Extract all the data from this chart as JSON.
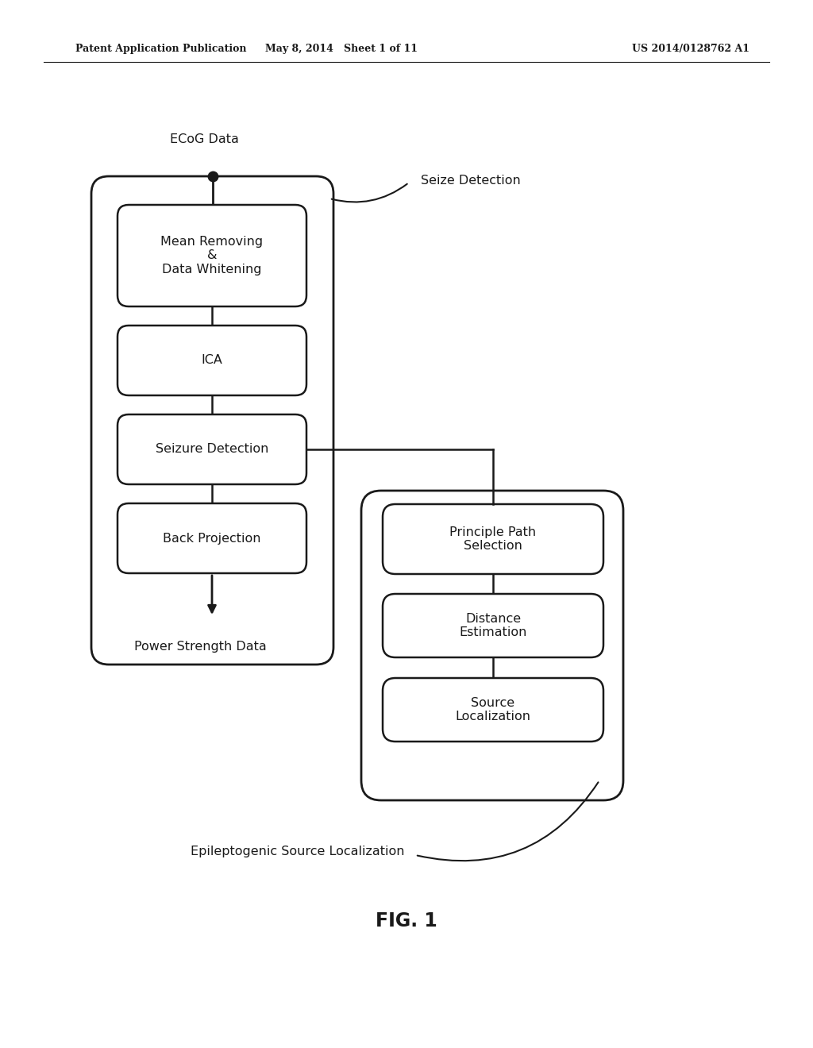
{
  "header_left": "Patent Application Publication",
  "header_mid": "May 8, 2014   Sheet 1 of 11",
  "header_right": "US 2014/0128762 A1",
  "fig_label": "FIG. 1",
  "ecog_label": "ECoG Data",
  "seize_detection_label": "Seize Detection",
  "power_strength_label": "Power Strength Data",
  "epileptogenic_label": "Epileptogenic Source Localization",
  "left_box_blocks": [
    "Mean Removing\n&\nData Whitening",
    "ICA",
    "Seizure Detection",
    "Back Projection"
  ],
  "right_box_blocks": [
    "Principle Path\nSelection",
    "Distance\nEstimation",
    "Source\nLocalization"
  ],
  "bg_color": "#ffffff",
  "line_color": "#1a1a1a",
  "text_color": "#1a1a1a"
}
